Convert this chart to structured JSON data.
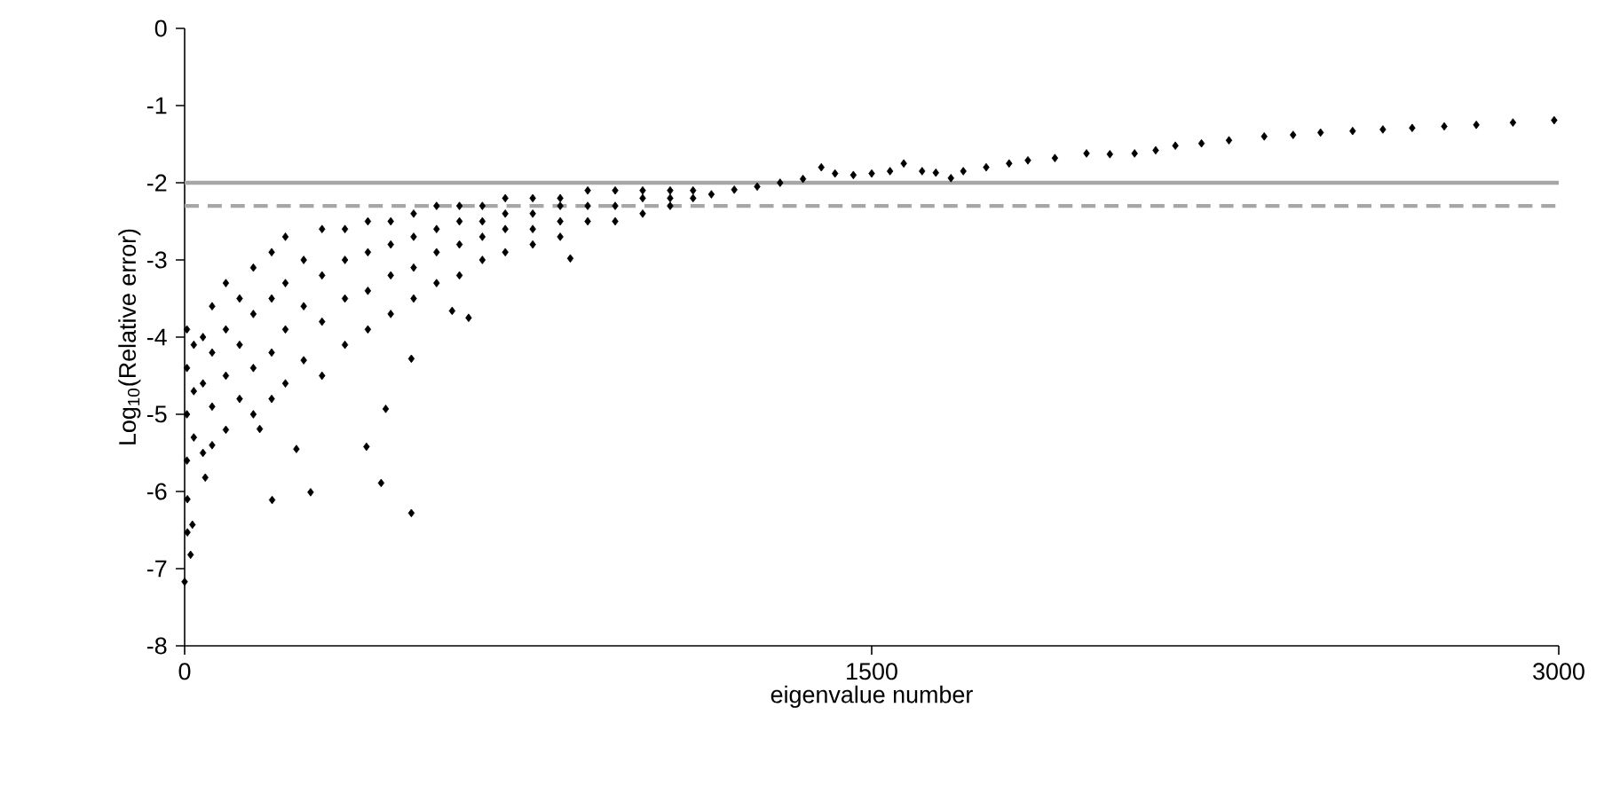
{
  "chart_data": {
    "type": "scatter",
    "xlabel": "eigenvalue number",
    "ylabel": "Log$_{10}$(Relative error)",
    "xlim": [
      0,
      3000
    ],
    "xticks": [
      0,
      1500,
      3000
    ],
    "ylim": [
      -8,
      0
    ],
    "yticks": [
      0,
      -1,
      -2,
      -3,
      -4,
      -5,
      -6,
      -7,
      -8
    ],
    "grid": false,
    "marker": "diamond",
    "series": [
      {
        "color": "#000000",
        "x": [
          0,
          6,
          6,
          13,
          17,
          45,
          164,
          191,
          244,
          275,
          397,
          429,
          439,
          495,
          495,
          584,
          620,
          842,
          5,
          5,
          5,
          5,
          20,
          20,
          20,
          40,
          40,
          40,
          60,
          60,
          60,
          60,
          90,
          90,
          90,
          90,
          120,
          120,
          120,
          150,
          150,
          150,
          150,
          190,
          190,
          190,
          190,
          220,
          220,
          220,
          220,
          260,
          260,
          260,
          300,
          300,
          300,
          300,
          350,
          350,
          350,
          350,
          400,
          400,
          400,
          400,
          450,
          450,
          450,
          450,
          500,
          500,
          500,
          500,
          550,
          550,
          550,
          550,
          600,
          600,
          600,
          600,
          650,
          650,
          650,
          650,
          700,
          700,
          700,
          700,
          760,
          760,
          760,
          760,
          820,
          820,
          820,
          820,
          880,
          880,
          880,
          940,
          940,
          940,
          1000,
          1000,
          1000,
          1060,
          1060,
          1060,
          1110,
          1110,
          1150,
          1200,
          1250,
          1300,
          1350,
          1390,
          1420,
          1460,
          1500,
          1540,
          1570,
          1610,
          1640,
          1673,
          1700,
          1750,
          1800,
          1841,
          1900,
          1969,
          2020,
          2074,
          2120,
          2163,
          2220,
          2280,
          2357,
          2420,
          2480,
          2550,
          2616,
          2680,
          2750,
          2820,
          2900,
          2990
        ],
        "values": [
          -7.17,
          -6.53,
          -6.1,
          -6.82,
          -6.43,
          -5.82,
          -5.19,
          -6.11,
          -5.45,
          -6.01,
          -5.42,
          -5.89,
          -4.93,
          -6.28,
          -4.28,
          -3.66,
          -3.75,
          -2.98,
          -3.9,
          -4.4,
          -5.0,
          -5.6,
          -4.1,
          -4.7,
          -5.3,
          -4.0,
          -4.6,
          -5.5,
          -3.6,
          -4.2,
          -4.9,
          -5.4,
          -3.3,
          -3.9,
          -4.5,
          -5.2,
          -3.5,
          -4.1,
          -4.8,
          -3.1,
          -3.7,
          -4.4,
          -5.0,
          -2.9,
          -3.5,
          -4.2,
          -4.8,
          -2.7,
          -3.3,
          -3.9,
          -4.6,
          -3.0,
          -3.6,
          -4.3,
          -2.6,
          -3.2,
          -3.8,
          -4.5,
          -2.6,
          -3.0,
          -3.5,
          -4.1,
          -2.5,
          -2.9,
          -3.4,
          -3.9,
          -2.5,
          -2.8,
          -3.2,
          -3.7,
          -2.4,
          -2.7,
          -3.1,
          -3.5,
          -2.3,
          -2.6,
          -2.9,
          -3.3,
          -2.3,
          -2.5,
          -2.8,
          -3.2,
          -2.3,
          -2.5,
          -2.7,
          -3.0,
          -2.2,
          -2.4,
          -2.6,
          -2.9,
          -2.2,
          -2.4,
          -2.6,
          -2.8,
          -2.2,
          -2.3,
          -2.5,
          -2.7,
          -2.1,
          -2.3,
          -2.5,
          -2.1,
          -2.3,
          -2.5,
          -2.1,
          -2.2,
          -2.4,
          -2.1,
          -2.2,
          -2.3,
          -2.1,
          -2.2,
          -2.15,
          -2.09,
          -2.05,
          -2.0,
          -1.95,
          -1.8,
          -1.88,
          -1.9,
          -1.88,
          -1.85,
          -1.75,
          -1.85,
          -1.87,
          -1.94,
          -1.85,
          -1.8,
          -1.75,
          -1.71,
          -1.68,
          -1.62,
          -1.63,
          -1.62,
          -1.58,
          -1.52,
          -1.49,
          -1.45,
          -1.4,
          -1.38,
          -1.35,
          -1.33,
          -1.31,
          -1.29,
          -1.27,
          -1.25,
          -1.22,
          -1.19
        ]
      }
    ],
    "ref_lines": [
      {
        "axis": "y",
        "value": -2,
        "color": "#a6a6a6",
        "line_style": "solid"
      },
      {
        "axis": "y",
        "value": -2.3,
        "color": "#a6a6a6",
        "line_style": "dashed"
      }
    ]
  }
}
